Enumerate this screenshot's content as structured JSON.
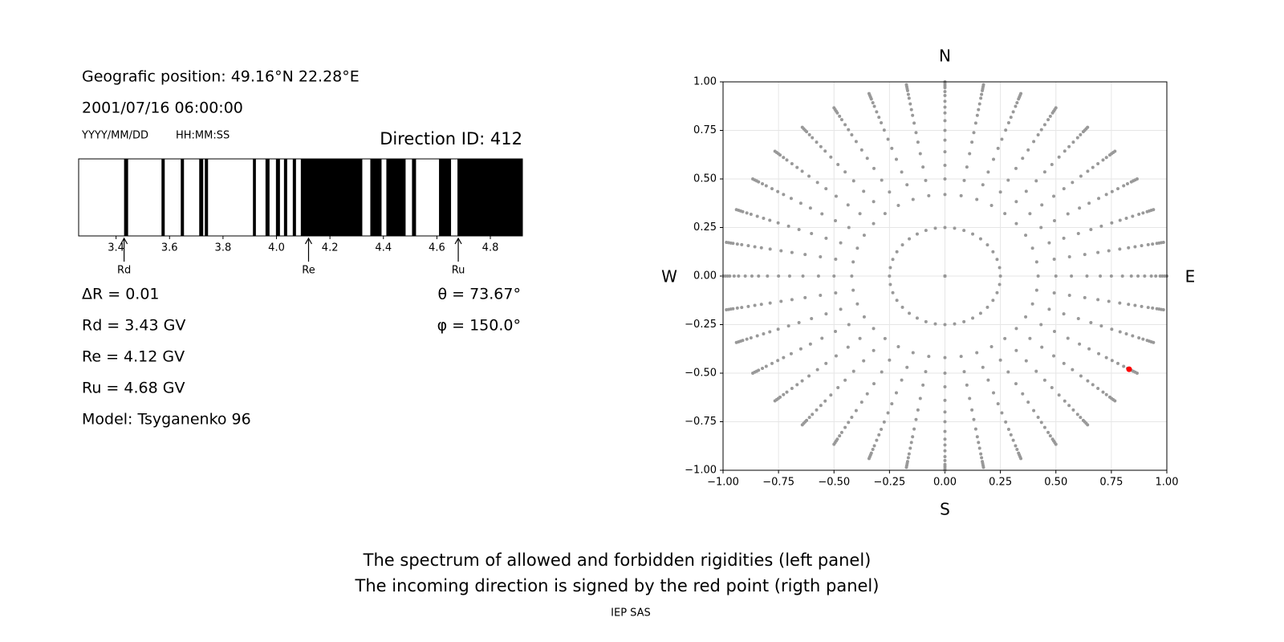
{
  "header": {
    "position": "Geografic position: 49.16°N 22.28°E",
    "datetime": "2001/07/16 06:00:00",
    "date_format": "YYYY/MM/DD",
    "time_format": "HH:MM:SS",
    "direction": "Direction ID: 412"
  },
  "stats_left": [
    "ΔR = 0.01",
    "Rd = 3.43 GV",
    "Re = 4.12 GV",
    "Ru = 4.68 GV",
    "Model: Tsyganenko 96"
  ],
  "stats_right": [
    "θ = 73.67°",
    "φ = 150.0°"
  ],
  "caption": [
    "The spectrum of allowed and forbidden rigidities (left panel)",
    "The incoming direction is signed by the red point (rigth panel)"
  ],
  "credit": "IEP SAS",
  "chart_data": [
    {
      "type": "spectrum",
      "xlim": [
        3.26,
        4.92
      ],
      "xticks": [
        3.4,
        3.6,
        3.8,
        {
          "value": 4,
          "label": "4.0"
        },
        4.2,
        4.4,
        4.6,
        4.8
      ],
      "band_color": "#000000",
      "bands": [
        [
          3.43,
          3.445
        ],
        [
          3.57,
          3.582
        ],
        [
          3.642,
          3.654
        ],
        [
          3.711,
          3.726
        ],
        [
          3.732,
          3.744
        ],
        [
          3.912,
          3.923
        ],
        [
          3.959,
          3.974
        ],
        [
          3.998,
          4.013
        ],
        [
          4.028,
          4.04
        ],
        [
          4.061,
          4.073
        ],
        [
          4.091,
          4.321
        ],
        [
          4.351,
          4.393
        ],
        [
          4.411,
          4.483
        ],
        [
          4.507,
          4.522
        ],
        [
          4.608,
          4.653
        ],
        [
          4.677,
          4.92
        ]
      ],
      "markers": [
        {
          "label": "Rd",
          "value": 3.43
        },
        {
          "label": "Re",
          "value": 4.12
        },
        {
          "label": "Ru",
          "value": 4.68
        }
      ]
    },
    {
      "type": "scatter",
      "xlim": [
        -1,
        1
      ],
      "ylim": [
        -1,
        1
      ],
      "xticks": [
        {
          "value": -1,
          "label": "−1.00"
        },
        {
          "value": -0.75,
          "label": "−0.75"
        },
        {
          "value": -0.5,
          "label": "−0.50"
        },
        {
          "value": -0.25,
          "label": "−0.25"
        },
        {
          "value": 0,
          "label": "0.00"
        },
        0.25,
        {
          "value": 0.5,
          "label": "0.50"
        },
        0.75,
        {
          "value": 1,
          "label": "1.00"
        }
      ],
      "yticks": [
        {
          "value": -1,
          "label": "−1.00"
        },
        {
          "value": -0.75,
          "label": "−0.75"
        },
        {
          "value": -0.5,
          "label": "−0.50"
        },
        {
          "value": -0.25,
          "label": "−0.25"
        },
        {
          "value": 0,
          "label": "0.00"
        },
        0.25,
        {
          "value": 0.5,
          "label": "0.50"
        },
        0.75,
        {
          "value": 1,
          "label": "1.00"
        }
      ],
      "grid": true,
      "compass": {
        "north": "N",
        "south": "S",
        "west": "W",
        "east": "E"
      },
      "grid_color": "#999999",
      "grid_azimuths": [
        0,
        10,
        20,
        30,
        40,
        50,
        60,
        70,
        80,
        90,
        100,
        110,
        120,
        130,
        140,
        150,
        160,
        170,
        180,
        190,
        200,
        210,
        220,
        230,
        240,
        250,
        260,
        270,
        280,
        290,
        300,
        310,
        320,
        330,
        340,
        350
      ],
      "grid_radii": [
        0,
        0.25,
        0.42,
        0.5,
        0.57,
        0.64,
        0.7,
        0.75,
        0.8,
        0.84,
        0.87,
        0.9,
        0.93,
        0.95,
        0.97,
        0.98,
        0.99,
        1
      ],
      "point": {
        "x": 0.83,
        "y": -0.48,
        "color": "#ff0000"
      }
    }
  ]
}
